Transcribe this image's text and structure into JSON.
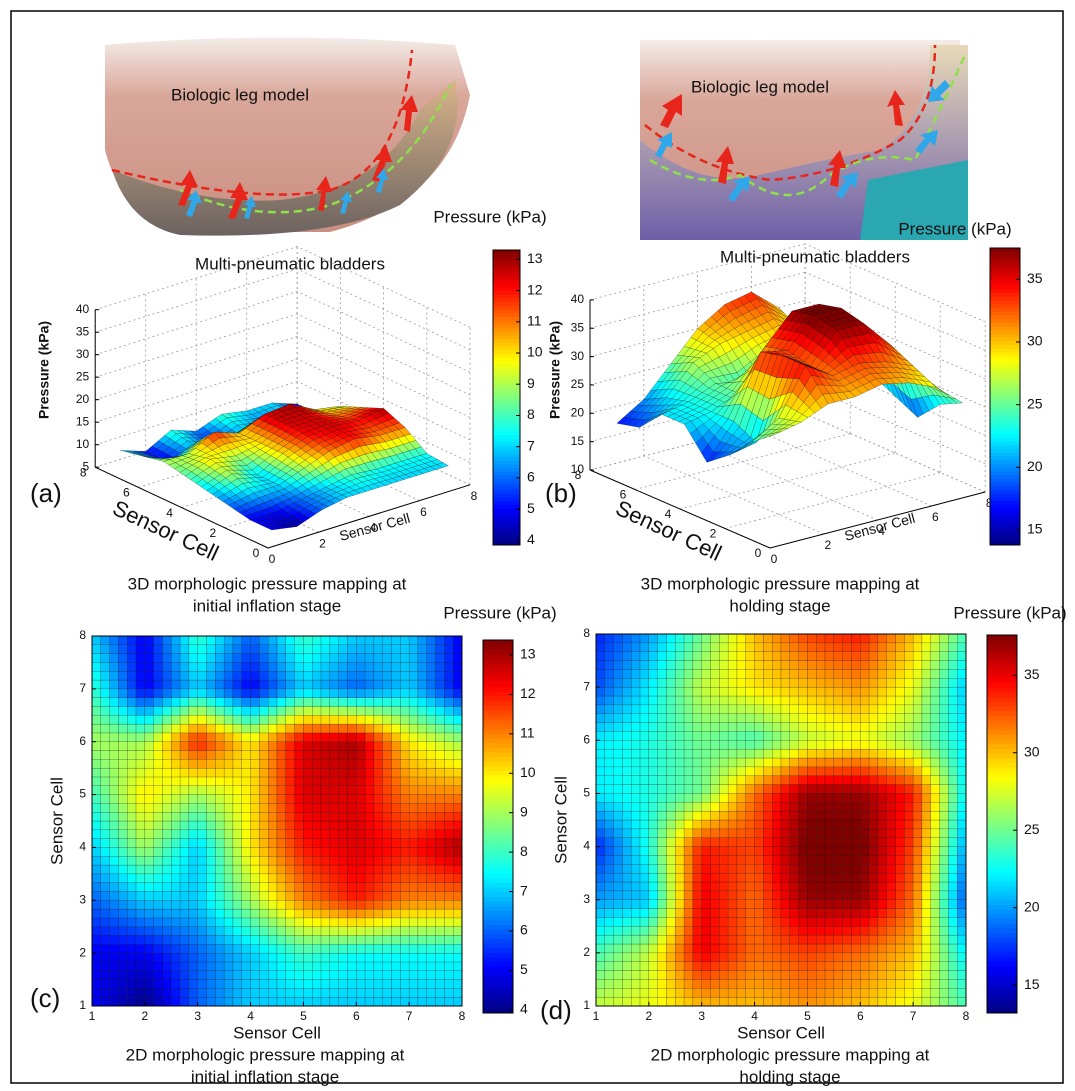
{
  "photos": [
    {
      "label": "Biologic leg model",
      "caption": "Multi-pneumatic bladders"
    },
    {
      "label": "Biologic leg model",
      "caption": "Multi-pneumatic bladders"
    }
  ],
  "chart_data": [
    {
      "type": "surface3d",
      "panel": "(a)",
      "caption": [
        "3D morphologic pressure mapping at",
        "initial inflation stage"
      ],
      "xlabel": "Sensor Cell",
      "ylabel": "Sensor Cell",
      "zlabel": "Pressure (kPa)",
      "colorbar_label": "Pressure (kPa)",
      "x": [
        1,
        2,
        3,
        4,
        5,
        6,
        7,
        8
      ],
      "y": [
        1,
        2,
        3,
        4,
        5,
        6,
        7,
        8
      ],
      "z": [
        [
          5,
          4,
          6,
          7,
          7,
          7,
          7,
          7
        ],
        [
          5,
          5,
          6,
          7,
          8,
          7.5,
          7.5,
          7.5
        ],
        [
          6,
          7,
          7,
          9,
          11,
          12,
          11,
          11
        ],
        [
          7,
          9,
          7,
          10,
          12,
          12.5,
          12,
          13
        ],
        [
          8,
          10,
          9,
          10,
          12.5,
          12.5,
          11,
          11
        ],
        [
          9,
          9,
          12,
          10,
          12.5,
          13,
          10,
          9
        ],
        [
          8,
          5,
          7,
          5,
          7,
          6,
          7,
          5
        ],
        [
          7,
          5,
          8,
          6,
          8,
          7,
          7,
          5
        ]
      ],
      "xlim": [
        0,
        8
      ],
      "ylim": [
        0,
        8
      ],
      "zlim": [
        5,
        40
      ],
      "xticks": [
        0,
        2,
        4,
        6,
        8
      ],
      "yticks": [
        0,
        2,
        4,
        6,
        8
      ],
      "zticks": [
        5,
        10,
        15,
        20,
        25,
        30,
        35,
        40
      ],
      "clim": [
        3.85,
        13.3
      ],
      "cticks": [
        4,
        5,
        6,
        7,
        8,
        9,
        10,
        11,
        12,
        13
      ],
      "colormap": "jet",
      "grid": true
    },
    {
      "type": "surface3d",
      "panel": "(b)",
      "caption": [
        "3D morphologic pressure mapping at",
        "holding stage"
      ],
      "xlabel": "Sensor Cell",
      "ylabel": "Sensor Cell",
      "zlabel": "Pressure (kPa)",
      "colorbar_label": "Pressure (kPa)",
      "x": [
        1,
        2,
        3,
        4,
        5,
        6,
        7,
        8
      ],
      "y": [
        1,
        2,
        3,
        4,
        5,
        6,
        7,
        8
      ],
      "z": [
        [
          27,
          28,
          30,
          30,
          31,
          30,
          28,
          24
        ],
        [
          24,
          27,
          35,
          32,
          33,
          32,
          30,
          22
        ],
        [
          20,
          21,
          35,
          32,
          37,
          37,
          32,
          18
        ],
        [
          17,
          23,
          34,
          33,
          38,
          38,
          33,
          20
        ],
        [
          22,
          23,
          25,
          32,
          37,
          37,
          34,
          22
        ],
        [
          22,
          23,
          25,
          24,
          27,
          28,
          26,
          22
        ],
        [
          18,
          22,
          27,
          29,
          30,
          31,
          28,
          21
        ],
        [
          17,
          20,
          25,
          30,
          33,
          34,
          30,
          24
        ]
      ],
      "xlim": [
        0,
        8
      ],
      "ylim": [
        0,
        8
      ],
      "zlim": [
        10,
        40
      ],
      "xticks": [
        0,
        2,
        4,
        6,
        8
      ],
      "yticks": [
        0,
        2,
        4,
        6,
        8
      ],
      "zticks": [
        10,
        15,
        20,
        25,
        30,
        35,
        40
      ],
      "clim": [
        13.8,
        37.5
      ],
      "cticks": [
        15,
        20,
        25,
        30,
        35
      ],
      "colormap": "jet",
      "grid": true
    },
    {
      "type": "heatmap",
      "panel": "(c)",
      "caption": [
        "2D morphologic pressure mapping at",
        "initial inflation stage"
      ],
      "xlabel": "Sensor Cell",
      "ylabel": "Sensor Cell",
      "colorbar_label": "Pressure (kPa)",
      "x": [
        1,
        2,
        3,
        4,
        5,
        6,
        7,
        8
      ],
      "y": [
        1,
        2,
        3,
        4,
        5,
        6,
        7,
        8
      ],
      "z": [
        [
          5,
          4,
          6,
          7,
          7,
          7,
          7,
          7
        ],
        [
          5,
          5,
          6,
          7,
          8,
          7.5,
          7.5,
          7.5
        ],
        [
          6,
          7,
          7,
          9,
          11,
          12,
          11,
          11
        ],
        [
          7,
          9,
          7,
          10,
          12,
          12.5,
          12,
          13
        ],
        [
          8,
          10,
          9,
          10,
          12.5,
          12.5,
          11,
          11
        ],
        [
          9,
          9,
          12,
          10,
          12.5,
          13,
          10,
          9
        ],
        [
          8,
          5,
          7,
          5,
          7,
          6,
          7,
          5
        ],
        [
          7,
          5,
          8,
          6,
          8,
          7,
          7,
          5
        ]
      ],
      "xlim": [
        1,
        8
      ],
      "ylim": [
        1,
        8
      ],
      "xticks": [
        1,
        2,
        3,
        4,
        5,
        6,
        7,
        8
      ],
      "yticks": [
        1,
        2,
        3,
        4,
        5,
        6,
        7,
        8
      ],
      "clim": [
        3.92,
        13.38
      ],
      "cticks": [
        4,
        5,
        6,
        7,
        8,
        9,
        10,
        11,
        12,
        13
      ],
      "colormap": "jet"
    },
    {
      "type": "heatmap",
      "panel": "(d)",
      "caption": [
        "2D morphologic pressure mapping at",
        "holding stage"
      ],
      "xlabel": "Sensor Cell",
      "ylabel": "Sensor Cell",
      "colorbar_label": "Pressure (kPa)",
      "x": [
        1,
        2,
        3,
        4,
        5,
        6,
        7,
        8
      ],
      "y": [
        1,
        2,
        3,
        4,
        5,
        6,
        7,
        8
      ],
      "z": [
        [
          27,
          28,
          30,
          30,
          31,
          30,
          28,
          24
        ],
        [
          24,
          27,
          35,
          32,
          33,
          32,
          30,
          22
        ],
        [
          20,
          21,
          35,
          32,
          37,
          37,
          32,
          18
        ],
        [
          17,
          23,
          34,
          33,
          38,
          38,
          33,
          20
        ],
        [
          22,
          23,
          25,
          32,
          37,
          37,
          34,
          22
        ],
        [
          22,
          23,
          25,
          24,
          27,
          28,
          26,
          22
        ],
        [
          18,
          22,
          27,
          29,
          30,
          31,
          28,
          21
        ],
        [
          17,
          20,
          25,
          30,
          33,
          34,
          30,
          24
        ]
      ],
      "xlim": [
        1,
        8
      ],
      "ylim": [
        1,
        8
      ],
      "xticks": [
        1,
        2,
        3,
        4,
        5,
        6,
        7,
        8
      ],
      "yticks": [
        1,
        2,
        3,
        4,
        5,
        6,
        7,
        8
      ],
      "clim": [
        13.2,
        37.6
      ],
      "cticks": [
        15,
        20,
        25,
        30,
        35
      ],
      "colormap": "jet"
    }
  ]
}
